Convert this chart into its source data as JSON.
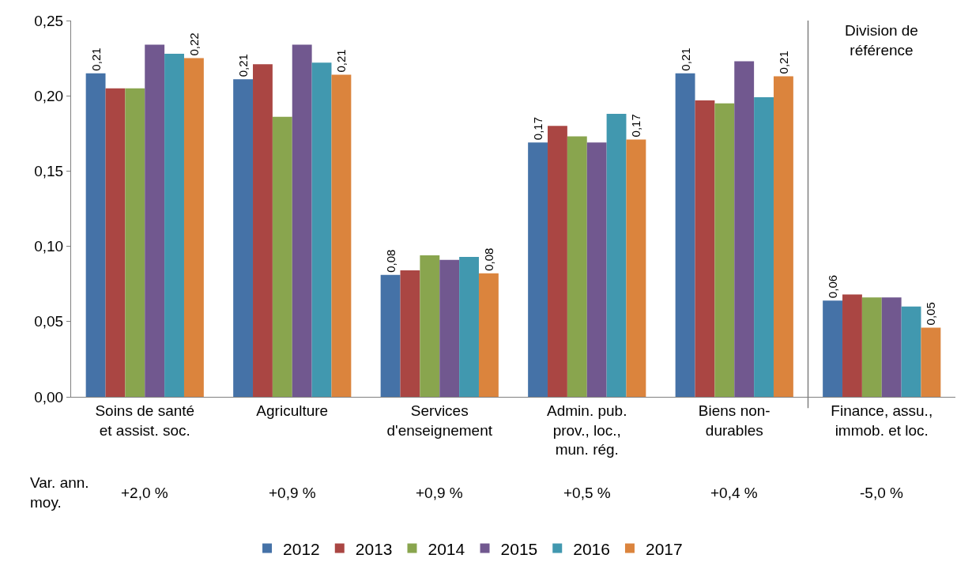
{
  "chart_data": {
    "type": "bar",
    "categories": [
      "Soins de santé\net assist. soc.",
      "Agriculture",
      "Services\nd'enseignement",
      "Admin. pub.\nprov., loc.,\nmun. rég.",
      "Biens non-\ndurables",
      "Finance, assu.,\nimmob. et loc."
    ],
    "series": [
      {
        "name": "2012",
        "color": "#4572a7",
        "values": [
          0.215,
          0.211,
          0.081,
          0.169,
          0.215,
          0.064
        ],
        "value_labels": [
          "0,21",
          "0,21",
          "0,08",
          "0,17",
          "0,21",
          "0,06"
        ]
      },
      {
        "name": "2013",
        "color": "#aa4643",
        "values": [
          0.205,
          0.221,
          0.084,
          0.18,
          0.197,
          0.068
        ]
      },
      {
        "name": "2014",
        "color": "#89a54e",
        "values": [
          0.205,
          0.186,
          0.094,
          0.173,
          0.195,
          0.066
        ]
      },
      {
        "name": "2015",
        "color": "#71588f",
        "values": [
          0.234,
          0.234,
          0.091,
          0.169,
          0.223,
          0.066
        ]
      },
      {
        "name": "2016",
        "color": "#4198af",
        "values": [
          0.228,
          0.222,
          0.093,
          0.188,
          0.199,
          0.06
        ]
      },
      {
        "name": "2017",
        "color": "#db843d",
        "values": [
          0.225,
          0.214,
          0.082,
          0.171,
          0.213,
          0.046
        ],
        "value_labels": [
          "0,22",
          "0,21",
          "0,08",
          "0,17",
          "0,21",
          "0,05"
        ]
      }
    ],
    "ylim": [
      0,
      0.25
    ],
    "yticks": [
      {
        "value": 0,
        "label": "0,00"
      },
      {
        "value": 0.05,
        "label": "0,05"
      },
      {
        "value": 0.1,
        "label": "0,10"
      },
      {
        "value": 0.15,
        "label": "0,15"
      },
      {
        "value": 0.2,
        "label": "0,20"
      },
      {
        "value": 0.25,
        "label": "0,25"
      }
    ],
    "annotations": [
      "Var. ann.\nmoy.",
      "+2,0 %",
      "+0,9 %",
      "+0,9 %",
      "+0,5 %",
      "+0,4 %",
      "-5,0 %",
      "Division de\nréférence"
    ],
    "grid": false,
    "legend": "bottom"
  }
}
